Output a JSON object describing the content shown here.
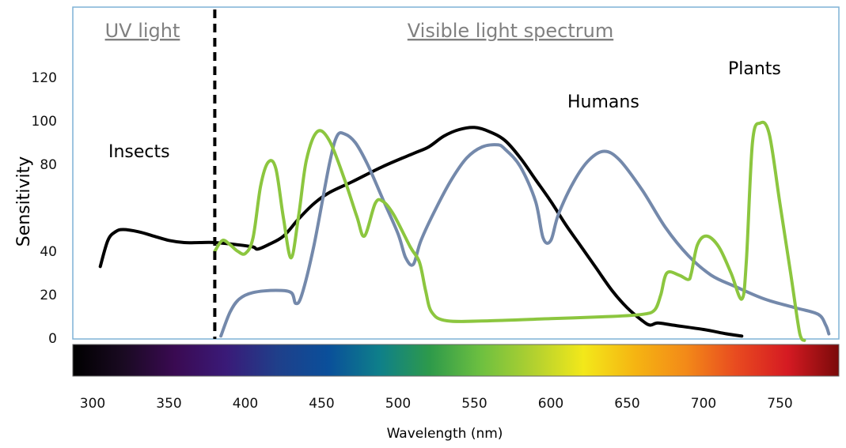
{
  "chart_data": {
    "type": "line",
    "xlabel": "Wavelength (nm)",
    "ylabel": "Sensitivity",
    "xlim": [
      290,
      790
    ],
    "ylim": [
      0,
      120
    ],
    "x_ticks": [
      "300",
      "350",
      "400",
      "450",
      "500",
      "550",
      "600",
      "650",
      "700",
      "750"
    ],
    "y_ticks": [
      "0",
      "20",
      "40",
      "80",
      "100",
      "120"
    ],
    "grid": false,
    "regions": [
      {
        "label": "UV light",
        "divider_at": 380
      },
      {
        "label": "Visible light spectrum"
      }
    ],
    "color_bar": [
      "#000000",
      "#1a0a22",
      "#3a0a52",
      "#3a1a78",
      "#1f3f8a",
      "#0a4f9a",
      "#0e7f8a",
      "#2e9a4a",
      "#6ec040",
      "#b0d030",
      "#f3e81a",
      "#f5b512",
      "#f38a18",
      "#e84a20",
      "#d51a22",
      "#7a0a0a"
    ],
    "series": [
      {
        "name": "Insects",
        "color": "#000000",
        "points": [
          [
            305,
            33
          ],
          [
            310,
            45
          ],
          [
            315,
            49
          ],
          [
            320,
            50
          ],
          [
            330,
            49
          ],
          [
            340,
            47
          ],
          [
            350,
            45
          ],
          [
            360,
            44
          ],
          [
            370,
            44
          ],
          [
            380,
            44
          ],
          [
            395,
            43
          ],
          [
            405,
            42
          ],
          [
            408,
            41
          ],
          [
            415,
            43
          ],
          [
            425,
            47
          ],
          [
            435,
            55
          ],
          [
            445,
            62
          ],
          [
            455,
            67
          ],
          [
            470,
            72
          ],
          [
            490,
            79
          ],
          [
            510,
            85
          ],
          [
            520,
            88
          ],
          [
            530,
            93
          ],
          [
            540,
            96
          ],
          [
            550,
            97
          ],
          [
            560,
            95
          ],
          [
            570,
            91
          ],
          [
            580,
            83
          ],
          [
            590,
            73
          ],
          [
            600,
            63
          ],
          [
            610,
            52
          ],
          [
            620,
            42
          ],
          [
            630,
            32
          ],
          [
            640,
            22
          ],
          [
            650,
            14
          ],
          [
            660,
            8
          ],
          [
            665,
            6
          ],
          [
            670,
            7
          ],
          [
            680,
            6
          ],
          [
            700,
            4
          ],
          [
            715,
            2
          ],
          [
            725,
            1
          ]
        ]
      },
      {
        "name": "Humans",
        "color": "#7489ab",
        "points": [
          [
            384,
            1
          ],
          [
            390,
            12
          ],
          [
            396,
            18
          ],
          [
            405,
            21
          ],
          [
            420,
            22
          ],
          [
            430,
            21
          ],
          [
            433,
            16
          ],
          [
            437,
            20
          ],
          [
            445,
            43
          ],
          [
            455,
            80
          ],
          [
            460,
            93
          ],
          [
            465,
            94
          ],
          [
            472,
            90
          ],
          [
            480,
            80
          ],
          [
            490,
            64
          ],
          [
            500,
            48
          ],
          [
            505,
            37
          ],
          [
            510,
            34
          ],
          [
            515,
            45
          ],
          [
            525,
            60
          ],
          [
            535,
            73
          ],
          [
            545,
            83
          ],
          [
            555,
            88
          ],
          [
            565,
            89
          ],
          [
            570,
            87
          ],
          [
            580,
            79
          ],
          [
            590,
            63
          ],
          [
            595,
            46
          ],
          [
            600,
            45
          ],
          [
            605,
            57
          ],
          [
            615,
            72
          ],
          [
            625,
            82
          ],
          [
            635,
            86
          ],
          [
            645,
            82
          ],
          [
            660,
            68
          ],
          [
            675,
            51
          ],
          [
            690,
            38
          ],
          [
            705,
            29
          ],
          [
            720,
            24
          ],
          [
            740,
            18
          ],
          [
            760,
            14
          ],
          [
            775,
            11
          ],
          [
            780,
            6
          ],
          [
            782,
            2
          ]
        ]
      },
      {
        "name": "Plants",
        "color": "#8cc63f",
        "points": [
          [
            380,
            40
          ],
          [
            385,
            45
          ],
          [
            390,
            43
          ],
          [
            395,
            40
          ],
          [
            400,
            39
          ],
          [
            405,
            46
          ],
          [
            410,
            70
          ],
          [
            415,
            81
          ],
          [
            420,
            78
          ],
          [
            425,
            55
          ],
          [
            430,
            37
          ],
          [
            435,
            57
          ],
          [
            440,
            82
          ],
          [
            447,
            95
          ],
          [
            455,
            91
          ],
          [
            465,
            73
          ],
          [
            473,
            56
          ],
          [
            478,
            47
          ],
          [
            485,
            62
          ],
          [
            490,
            63
          ],
          [
            497,
            57
          ],
          [
            508,
            42
          ],
          [
            514,
            35
          ],
          [
            518,
            22
          ],
          [
            522,
            12
          ],
          [
            532,
            8
          ],
          [
            560,
            8
          ],
          [
            600,
            9
          ],
          [
            640,
            10
          ],
          [
            660,
            11
          ],
          [
            668,
            13
          ],
          [
            672,
            20
          ],
          [
            676,
            30
          ],
          [
            684,
            29
          ],
          [
            690,
            27
          ],
          [
            692,
            30
          ],
          [
            696,
            43
          ],
          [
            702,
            47
          ],
          [
            710,
            42
          ],
          [
            718,
            30
          ],
          [
            725,
            18
          ],
          [
            728,
            35
          ],
          [
            732,
            90
          ],
          [
            737,
            99
          ],
          [
            743,
            94
          ],
          [
            750,
            62
          ],
          [
            757,
            30
          ],
          [
            762,
            6
          ],
          [
            764,
            0
          ],
          [
            766,
            -1
          ]
        ]
      }
    ]
  }
}
